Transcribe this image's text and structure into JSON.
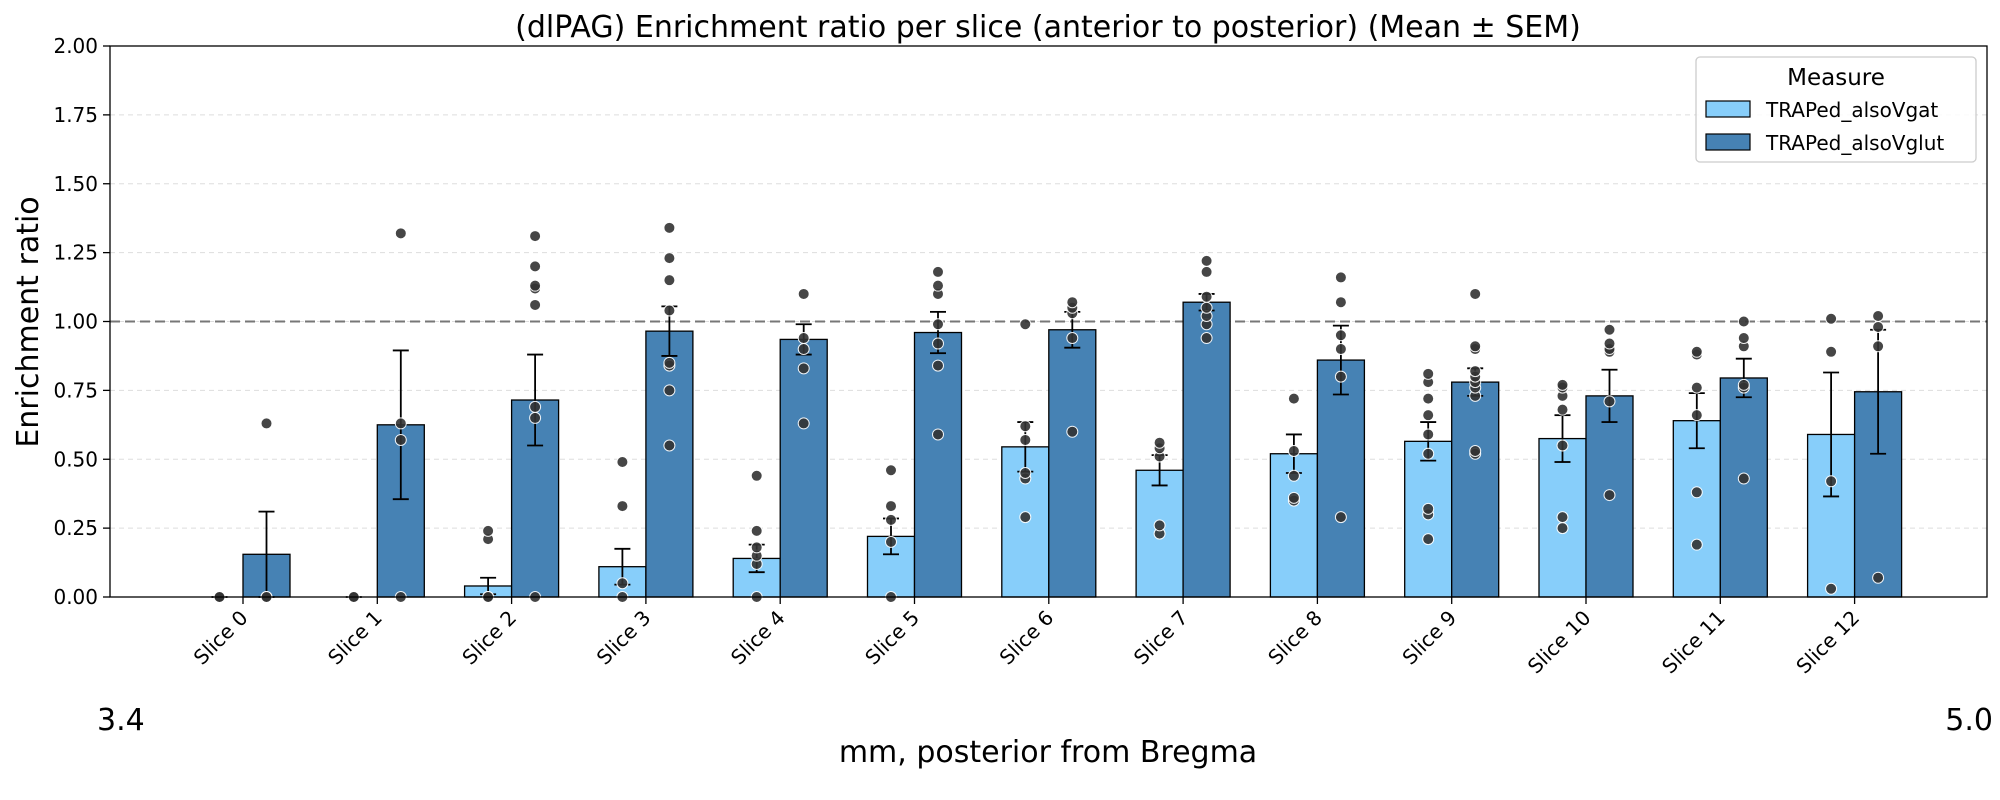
{
  "chart_data": {
    "type": "bar",
    "title": "(dlPAG) Enrichment ratio per slice (anterior to posterior) (Mean ± SEM)",
    "xlabel": "mm, posterior from Bregma",
    "ylabel": "Enrichment ratio",
    "ylim": [
      0,
      2.0
    ],
    "yticks": [
      "0.00",
      "0.25",
      "0.50",
      "0.75",
      "1.00",
      "1.25",
      "1.50",
      "1.75",
      "2.00"
    ],
    "ytick_values": [
      0,
      0.25,
      0.5,
      0.75,
      1.0,
      1.25,
      1.5,
      1.75,
      2.0
    ],
    "grid": "y, dashed",
    "reference_line": 1.0,
    "x_range_left_label": "3.4",
    "x_range_right_label": "5.0",
    "categories": [
      "Slice 0",
      "Slice 1",
      "Slice 2",
      "Slice 3",
      "Slice 4",
      "Slice 5",
      "Slice 6",
      "Slice 7",
      "Slice 8",
      "Slice 9",
      "Slice 10",
      "Slice 11",
      "Slice 12"
    ],
    "legend": {
      "title": "Measure",
      "position": "top-right"
    },
    "series": [
      {
        "name": "TRAPed_alsoVgat",
        "color": "#87CEFA",
        "values": [
          0.0,
          0.0,
          0.04,
          0.11,
          0.14,
          0.22,
          0.545,
          0.46,
          0.52,
          0.565,
          0.575,
          0.64,
          0.59
        ],
        "sem": [
          0.0,
          0.0,
          0.03,
          0.065,
          0.05,
          0.065,
          0.09,
          0.055,
          0.07,
          0.07,
          0.085,
          0.1,
          0.225
        ],
        "points": [
          [
            0.0,
            0.0,
            0.0
          ],
          [
            0.0,
            0.0,
            0.0
          ],
          [
            0.0,
            0.0,
            0.21,
            0.24
          ],
          [
            0.0,
            0.05,
            0.33,
            0.49
          ],
          [
            0.0,
            0.12,
            0.15,
            0.18,
            0.24,
            0.44
          ],
          [
            0.0,
            0.2,
            0.28,
            0.33,
            0.46
          ],
          [
            0.29,
            0.43,
            0.45,
            0.57,
            0.62,
            0.99
          ],
          [
            0.23,
            0.26,
            0.51,
            0.54,
            0.56
          ],
          [
            0.35,
            0.36,
            0.44,
            0.53,
            0.72
          ],
          [
            0.21,
            0.3,
            0.32,
            0.52,
            0.59,
            0.66,
            0.72,
            0.78,
            0.81
          ],
          [
            0.25,
            0.29,
            0.55,
            0.68,
            0.73,
            0.76,
            0.77
          ],
          [
            0.19,
            0.38,
            0.66,
            0.76,
            0.88,
            0.89
          ],
          [
            0.03,
            0.42,
            0.89,
            1.01
          ]
        ]
      },
      {
        "name": "TRAPed_alsoVglut",
        "color": "#4682B4",
        "values": [
          0.155,
          0.625,
          0.715,
          0.965,
          0.935,
          0.96,
          0.97,
          1.07,
          0.86,
          0.78,
          0.73,
          0.795,
          0.745
        ],
        "sem": [
          0.155,
          0.27,
          0.165,
          0.09,
          0.055,
          0.075,
          0.065,
          0.03,
          0.125,
          0.05,
          0.095,
          0.07,
          0.225
        ],
        "points": [
          [
            0.0,
            0.0,
            0.63
          ],
          [
            0.0,
            0.57,
            0.63,
            1.32
          ],
          [
            0.0,
            0.65,
            0.69,
            1.06,
            1.12,
            1.13,
            1.2,
            1.31
          ],
          [
            0.55,
            0.75,
            0.84,
            0.85,
            1.04,
            1.15,
            1.23,
            1.34
          ],
          [
            0.63,
            0.83,
            0.9,
            0.94,
            1.1
          ],
          [
            0.59,
            0.84,
            0.92,
            0.99,
            1.1,
            1.13,
            1.18
          ],
          [
            0.6,
            0.94,
            1.03,
            1.05,
            1.07
          ],
          [
            0.94,
            0.99,
            1.02,
            1.05,
            1.09,
            1.18,
            1.22
          ],
          [
            0.29,
            0.8,
            0.9,
            0.95,
            1.07,
            1.16
          ],
          [
            0.52,
            0.53,
            0.73,
            0.76,
            0.78,
            0.8,
            0.82,
            0.9,
            0.91,
            1.1
          ],
          [
            0.37,
            0.71,
            0.89,
            0.9,
            0.92,
            0.97
          ],
          [
            0.43,
            0.76,
            0.77,
            0.91,
            0.94,
            1.0
          ],
          [
            0.07,
            0.91,
            0.98,
            1.02
          ]
        ]
      }
    ]
  }
}
